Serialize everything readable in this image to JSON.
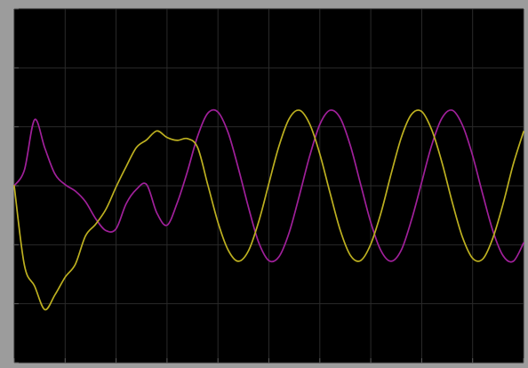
{
  "chart_data": {
    "type": "line",
    "title": "",
    "xlabel": "",
    "ylabel": "",
    "xlim": [
      0,
      10
    ],
    "ylim": [
      -3,
      3
    ],
    "grid": true,
    "x_ticks": [
      0,
      1,
      2,
      3,
      4,
      5,
      6,
      7,
      8,
      9,
      10
    ],
    "y_ticks": [
      -3,
      -2,
      -1,
      0,
      1,
      2,
      3
    ],
    "series": [
      {
        "color": "#a0209a",
        "x": [
          0.0,
          0.2,
          0.4,
          0.6,
          0.8,
          1.0,
          1.2,
          1.4,
          1.6,
          1.8,
          2.0,
          2.2,
          2.4,
          2.6,
          2.8,
          3.0,
          3.2,
          3.4,
          3.6,
          3.8,
          4.0,
          4.2,
          4.4,
          4.6,
          4.8,
          5.0,
          5.2,
          5.4,
          5.6,
          5.8,
          6.0,
          6.2,
          6.4,
          6.6,
          6.8,
          7.0,
          7.2,
          7.4,
          7.6,
          7.8,
          8.0,
          8.2,
          8.4,
          8.6,
          8.8,
          9.0,
          9.2,
          9.4,
          9.6,
          9.8,
          10.0
        ],
        "y": [
          0.0,
          0.27,
          1.12,
          0.64,
          0.2,
          0.02,
          -0.09,
          -0.27,
          -0.56,
          -0.76,
          -0.73,
          -0.3,
          -0.06,
          0.02,
          -0.46,
          -0.67,
          -0.29,
          0.24,
          0.84,
          1.23,
          1.25,
          0.9,
          0.3,
          -0.37,
          -0.96,
          -1.27,
          -1.2,
          -0.79,
          -0.16,
          0.5,
          1.04,
          1.28,
          1.15,
          0.68,
          0.03,
          -0.62,
          -1.1,
          -1.28,
          -1.09,
          -0.58,
          0.06,
          0.7,
          1.15,
          1.28,
          1.03,
          0.51,
          -0.15,
          -0.77,
          -1.19,
          -1.28,
          -0.97
        ]
      },
      {
        "color": "#bdb020",
        "x": [
          0.0,
          0.2,
          0.4,
          0.6,
          0.8,
          1.0,
          1.2,
          1.4,
          1.6,
          1.8,
          2.0,
          2.2,
          2.4,
          2.6,
          2.8,
          3.0,
          3.2,
          3.4,
          3.6,
          3.8,
          4.0,
          4.2,
          4.4,
          4.6,
          4.8,
          5.0,
          5.2,
          5.4,
          5.6,
          5.8,
          6.0,
          6.2,
          6.4,
          6.6,
          6.8,
          7.0,
          7.2,
          7.4,
          7.6,
          7.8,
          8.0,
          8.2,
          8.4,
          8.6,
          8.8,
          9.0,
          9.2,
          9.4,
          9.6,
          9.8,
          10.0
        ],
        "y": [
          0.0,
          -1.35,
          -1.7,
          -2.1,
          -1.85,
          -1.55,
          -1.33,
          -0.85,
          -0.65,
          -0.4,
          -0.02,
          0.33,
          0.65,
          0.78,
          0.93,
          0.82,
          0.77,
          0.8,
          0.65,
          0.02,
          -0.62,
          -1.09,
          -1.28,
          -1.1,
          -0.61,
          0.04,
          0.68,
          1.14,
          1.28,
          1.05,
          0.54,
          -0.12,
          -0.75,
          -1.18,
          -1.27,
          -0.99,
          -0.46,
          0.2,
          0.82,
          1.21,
          1.26,
          0.94,
          0.39,
          -0.28,
          -0.87,
          -1.23,
          -1.24,
          -0.88,
          -0.3,
          0.37,
          0.92
        ]
      }
    ]
  }
}
